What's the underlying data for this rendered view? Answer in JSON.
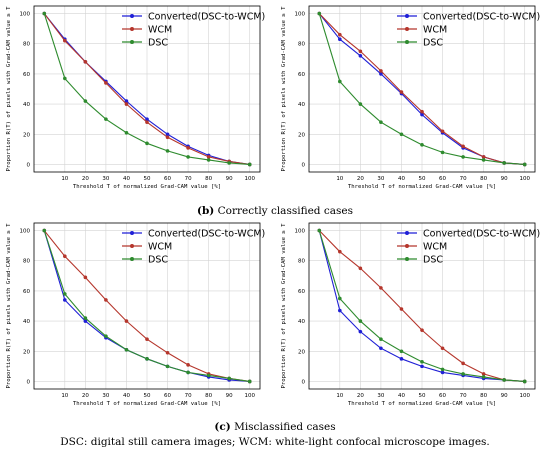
{
  "captions": {
    "b_letter": "(b)",
    "b_text": "Correctly classified cases",
    "c_letter": "(c)",
    "c_text": "Misclassified cases",
    "footnote": "DSC: digital still camera images; WCM: white-light confocal microscope images."
  },
  "chart_data": [
    {
      "type": "line",
      "panel": "correct-left",
      "xlabel": "Threshold T of normalized Grad-CAM value [%]",
      "ylabel": "Proportion R(T) of pixels with Grad-CAM value ≥ T",
      "x": [
        0,
        10,
        20,
        30,
        40,
        50,
        60,
        70,
        80,
        90,
        100
      ],
      "xticks": [
        10,
        20,
        30,
        40,
        50,
        60,
        70,
        80,
        90,
        100
      ],
      "yticks": [
        0,
        20,
        40,
        60,
        80,
        100
      ],
      "xlim": [
        0,
        100
      ],
      "ylim": [
        0,
        100
      ],
      "grid": true,
      "legend": "top-right",
      "series": [
        {
          "name": "Converted(DSC-to-WCM)",
          "color": "#1f1fd6",
          "values": [
            100,
            83,
            68,
            55,
            42,
            30,
            20,
            12,
            6,
            2,
            0
          ]
        },
        {
          "name": "WCM",
          "color": "#b5362c",
          "values": [
            100,
            82,
            68,
            54,
            40,
            28,
            18,
            11,
            5,
            2,
            0
          ]
        },
        {
          "name": "DSC",
          "color": "#2e8b2e",
          "values": [
            100,
            57,
            42,
            30,
            21,
            14,
            9,
            5,
            3,
            1,
            0
          ]
        }
      ]
    },
    {
      "type": "line",
      "panel": "correct-right",
      "xlabel": "Threshold T of normalized Grad-CAM value [%]",
      "ylabel": "Proportion R(T) of pixels with Grad-CAM value ≥ T",
      "x": [
        0,
        10,
        20,
        30,
        40,
        50,
        60,
        70,
        80,
        90,
        100
      ],
      "xticks": [
        10,
        20,
        30,
        40,
        50,
        60,
        70,
        80,
        90,
        100
      ],
      "yticks": [
        0,
        20,
        40,
        60,
        80,
        100
      ],
      "xlim": [
        0,
        100
      ],
      "ylim": [
        0,
        100
      ],
      "grid": true,
      "legend": "top-right",
      "series": [
        {
          "name": "Converted(DSC-to-WCM)",
          "color": "#1f1fd6",
          "values": [
            100,
            83,
            72,
            60,
            47,
            33,
            21,
            11,
            5,
            1,
            0
          ]
        },
        {
          "name": "WCM",
          "color": "#b5362c",
          "values": [
            100,
            86,
            75,
            62,
            48,
            35,
            22,
            12,
            5,
            1,
            0
          ]
        },
        {
          "name": "DSC",
          "color": "#2e8b2e",
          "values": [
            100,
            55,
            40,
            28,
            20,
            13,
            8,
            5,
            3,
            1,
            0
          ]
        }
      ]
    },
    {
      "type": "line",
      "panel": "mis-left",
      "xlabel": "Threshold T of normalized Grad-CAM value [%]",
      "ylabel": "Proportion R(T) of pixels with Grad-CAM value ≥ T",
      "x": [
        0,
        10,
        20,
        30,
        40,
        50,
        60,
        70,
        80,
        90,
        100
      ],
      "xticks": [
        10,
        20,
        30,
        40,
        50,
        60,
        70,
        80,
        90,
        100
      ],
      "yticks": [
        0,
        20,
        40,
        60,
        80,
        100
      ],
      "xlim": [
        0,
        100
      ],
      "ylim": [
        0,
        100
      ],
      "grid": true,
      "legend": "top-right",
      "series": [
        {
          "name": "Converted(DSC-to-WCM)",
          "color": "#1f1fd6",
          "values": [
            100,
            54,
            40,
            29,
            21,
            15,
            10,
            6,
            3,
            1,
            0
          ]
        },
        {
          "name": "WCM",
          "color": "#b5362c",
          "values": [
            100,
            83,
            69,
            54,
            40,
            28,
            19,
            11,
            5,
            2,
            0
          ]
        },
        {
          "name": "DSC",
          "color": "#2e8b2e",
          "values": [
            100,
            58,
            42,
            30,
            21,
            15,
            10,
            6,
            4,
            2,
            0
          ]
        }
      ]
    },
    {
      "type": "line",
      "panel": "mis-right",
      "xlabel": "Threshold T of normalized Grad-CAM value [%]",
      "ylabel": "Proportion R(T) of pixels with Grad-CAM value ≥ T",
      "x": [
        0,
        10,
        20,
        30,
        40,
        50,
        60,
        70,
        80,
        90,
        100
      ],
      "xticks": [
        10,
        20,
        30,
        40,
        50,
        60,
        70,
        80,
        90,
        100
      ],
      "yticks": [
        0,
        20,
        40,
        60,
        80,
        100
      ],
      "xlim": [
        0,
        100
      ],
      "ylim": [
        0,
        100
      ],
      "grid": true,
      "legend": "top-right",
      "series": [
        {
          "name": "Converted(DSC-to-WCM)",
          "color": "#1f1fd6",
          "values": [
            100,
            47,
            33,
            22,
            15,
            10,
            6,
            4,
            2,
            1,
            0
          ]
        },
        {
          "name": "WCM",
          "color": "#b5362c",
          "values": [
            100,
            86,
            75,
            62,
            48,
            34,
            22,
            12,
            5,
            1,
            0
          ]
        },
        {
          "name": "DSC",
          "color": "#2e8b2e",
          "values": [
            100,
            55,
            40,
            28,
            20,
            13,
            8,
            5,
            3,
            1,
            0
          ]
        }
      ]
    }
  ]
}
